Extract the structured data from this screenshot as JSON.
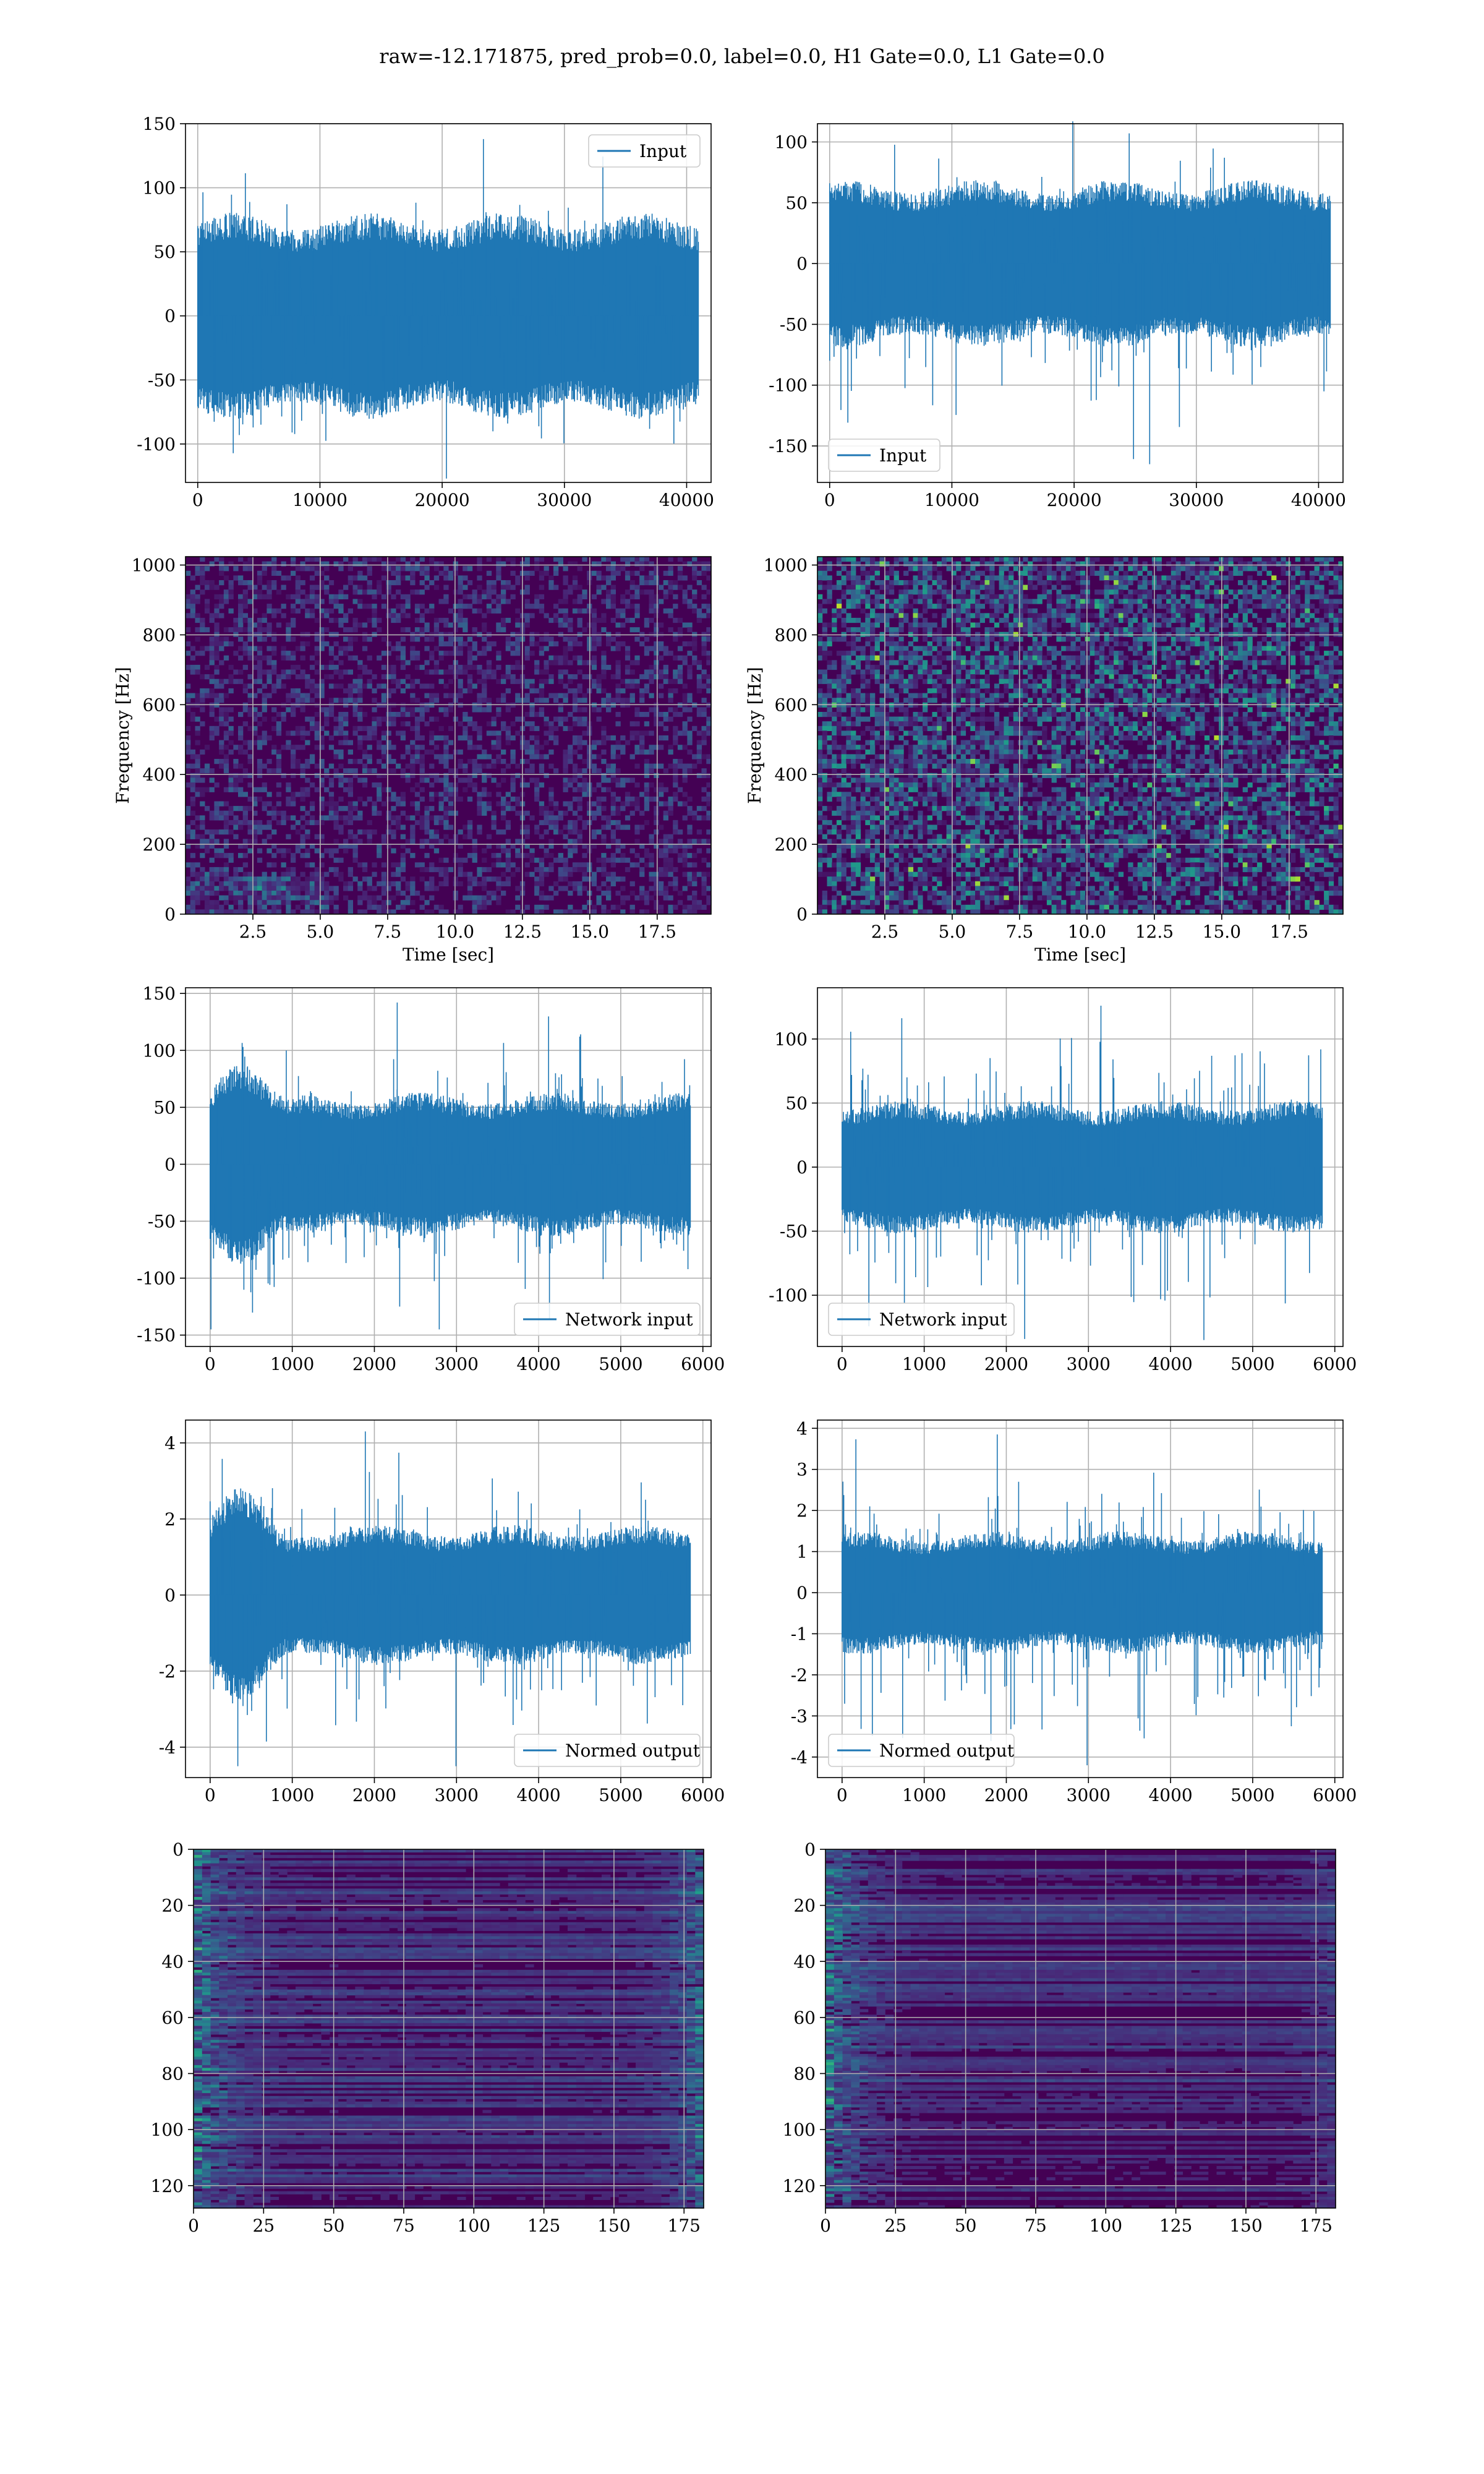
{
  "suptitle": "raw=-12.171875, pred_prob=0.0, label=0.0, H1 Gate=0.0, L1 Gate=0.0",
  "colors": {
    "line": "#1f77b4",
    "grid": "#b0b0b0",
    "viridis_low": "#440154",
    "viridis_high": "#fde725"
  },
  "chart_data": [
    {
      "id": "h1-input",
      "type": "line",
      "xlim": [
        -1000,
        42000
      ],
      "ylim": [
        -130,
        150
      ],
      "xticks": [
        0,
        10000,
        20000,
        30000,
        40000
      ],
      "yticks": [
        -100,
        -50,
        0,
        50,
        100,
        150
      ],
      "series": [
        {
          "name": "Input",
          "x_range": [
            0,
            40960
          ],
          "band": [
            -70,
            70
          ],
          "spikes": [
            -127,
            138
          ]
        }
      ],
      "legend": "upper right",
      "grid": true,
      "xlabel": "",
      "ylabel": ""
    },
    {
      "id": "l1-input",
      "type": "line",
      "xlim": [
        -1000,
        42000
      ],
      "ylim": [
        -180,
        115
      ],
      "xticks": [
        0,
        10000,
        20000,
        30000,
        40000
      ],
      "yticks": [
        -150,
        -100,
        -50,
        0,
        50,
        100
      ],
      "series": [
        {
          "name": "Input",
          "x_range": [
            0,
            40960
          ],
          "band": [
            -60,
            60
          ],
          "spikes": [
            -165,
            117
          ]
        }
      ],
      "legend": "lower left",
      "grid": true,
      "xlabel": "",
      "ylabel": ""
    },
    {
      "id": "h1-spectrogram",
      "type": "heatmap",
      "xlim": [
        0,
        19.5
      ],
      "ylim": [
        0,
        1024
      ],
      "xticks": [
        2.5,
        5.0,
        7.5,
        10.0,
        12.5,
        15.0,
        17.5
      ],
      "yticks": [
        0,
        200,
        400,
        600,
        800,
        1000
      ],
      "xlabel": "Time [sec]",
      "ylabel": "Frequency [Hz]",
      "grid": true
    },
    {
      "id": "l1-spectrogram",
      "type": "heatmap",
      "xlim": [
        0,
        19.5
      ],
      "ylim": [
        0,
        1024
      ],
      "xticks": [
        2.5,
        5.0,
        7.5,
        10.0,
        12.5,
        15.0,
        17.5
      ],
      "yticks": [
        0,
        200,
        400,
        600,
        800,
        1000
      ],
      "xlabel": "Time [sec]",
      "ylabel": "Frequency [Hz]",
      "grid": true
    },
    {
      "id": "h1-network-input",
      "type": "line",
      "xlim": [
        -300,
        6100
      ],
      "ylim": [
        -160,
        155
      ],
      "xticks": [
        0,
        1000,
        2000,
        3000,
        4000,
        5000,
        6000
      ],
      "yticks": [
        -150,
        -100,
        -50,
        0,
        50,
        100,
        150
      ],
      "series": [
        {
          "name": "Network input",
          "x_range": [
            0,
            5850
          ],
          "band": [
            -55,
            55
          ],
          "spikes": [
            -145,
            142
          ]
        }
      ],
      "legend": "lower right",
      "grid": true,
      "xlabel": "",
      "ylabel": ""
    },
    {
      "id": "l1-network-input",
      "type": "line",
      "xlim": [
        -300,
        6100
      ],
      "ylim": [
        -140,
        140
      ],
      "xticks": [
        0,
        1000,
        2000,
        3000,
        4000,
        5000,
        6000
      ],
      "yticks": [
        -100,
        -50,
        0,
        50,
        100
      ],
      "series": [
        {
          "name": "Network input",
          "x_range": [
            0,
            5850
          ],
          "band": [
            -45,
            45
          ],
          "spikes": [
            -135,
            126
          ]
        }
      ],
      "legend": "lower left",
      "grid": true,
      "xlabel": "",
      "ylabel": ""
    },
    {
      "id": "h1-normed-output",
      "type": "line",
      "xlim": [
        -300,
        6100
      ],
      "ylim": [
        -4.8,
        4.6
      ],
      "xticks": [
        0,
        1000,
        2000,
        3000,
        4000,
        5000,
        6000
      ],
      "yticks": [
        -4,
        -2,
        0,
        2,
        4
      ],
      "series": [
        {
          "name": "Normed output",
          "x_range": [
            0,
            5850
          ],
          "band": [
            -1.6,
            1.6
          ],
          "spikes": [
            -4.5,
            4.3
          ]
        }
      ],
      "legend": "lower right",
      "grid": true,
      "xlabel": "",
      "ylabel": ""
    },
    {
      "id": "l1-normed-output",
      "type": "line",
      "xlim": [
        -300,
        6100
      ],
      "ylim": [
        -4.5,
        4.2
      ],
      "xticks": [
        0,
        1000,
        2000,
        3000,
        4000,
        5000,
        6000
      ],
      "yticks": [
        -4,
        -3,
        -2,
        -1,
        0,
        1,
        2,
        3,
        4
      ],
      "series": [
        {
          "name": "Normed output",
          "x_range": [
            0,
            5850
          ],
          "band": [
            -1.3,
            1.3
          ],
          "spikes": [
            -4.2,
            3.85
          ]
        }
      ],
      "legend": "lower left",
      "grid": true,
      "xlabel": "",
      "ylabel": ""
    },
    {
      "id": "h1-feature-map",
      "type": "heatmap",
      "xlim": [
        0,
        182
      ],
      "ylim": [
        128,
        0
      ],
      "xticks": [
        0,
        25,
        50,
        75,
        100,
        125,
        150,
        175
      ],
      "yticks": [
        0,
        20,
        40,
        60,
        80,
        100,
        120
      ],
      "xlabel": "",
      "ylabel": "",
      "grid": true
    },
    {
      "id": "l1-feature-map",
      "type": "heatmap",
      "xlim": [
        0,
        182
      ],
      "ylim": [
        128,
        0
      ],
      "xticks": [
        0,
        25,
        50,
        75,
        100,
        125,
        150,
        175
      ],
      "yticks": [
        0,
        20,
        40,
        60,
        80,
        100,
        120
      ],
      "xlabel": "",
      "ylabel": "",
      "grid": true
    }
  ]
}
